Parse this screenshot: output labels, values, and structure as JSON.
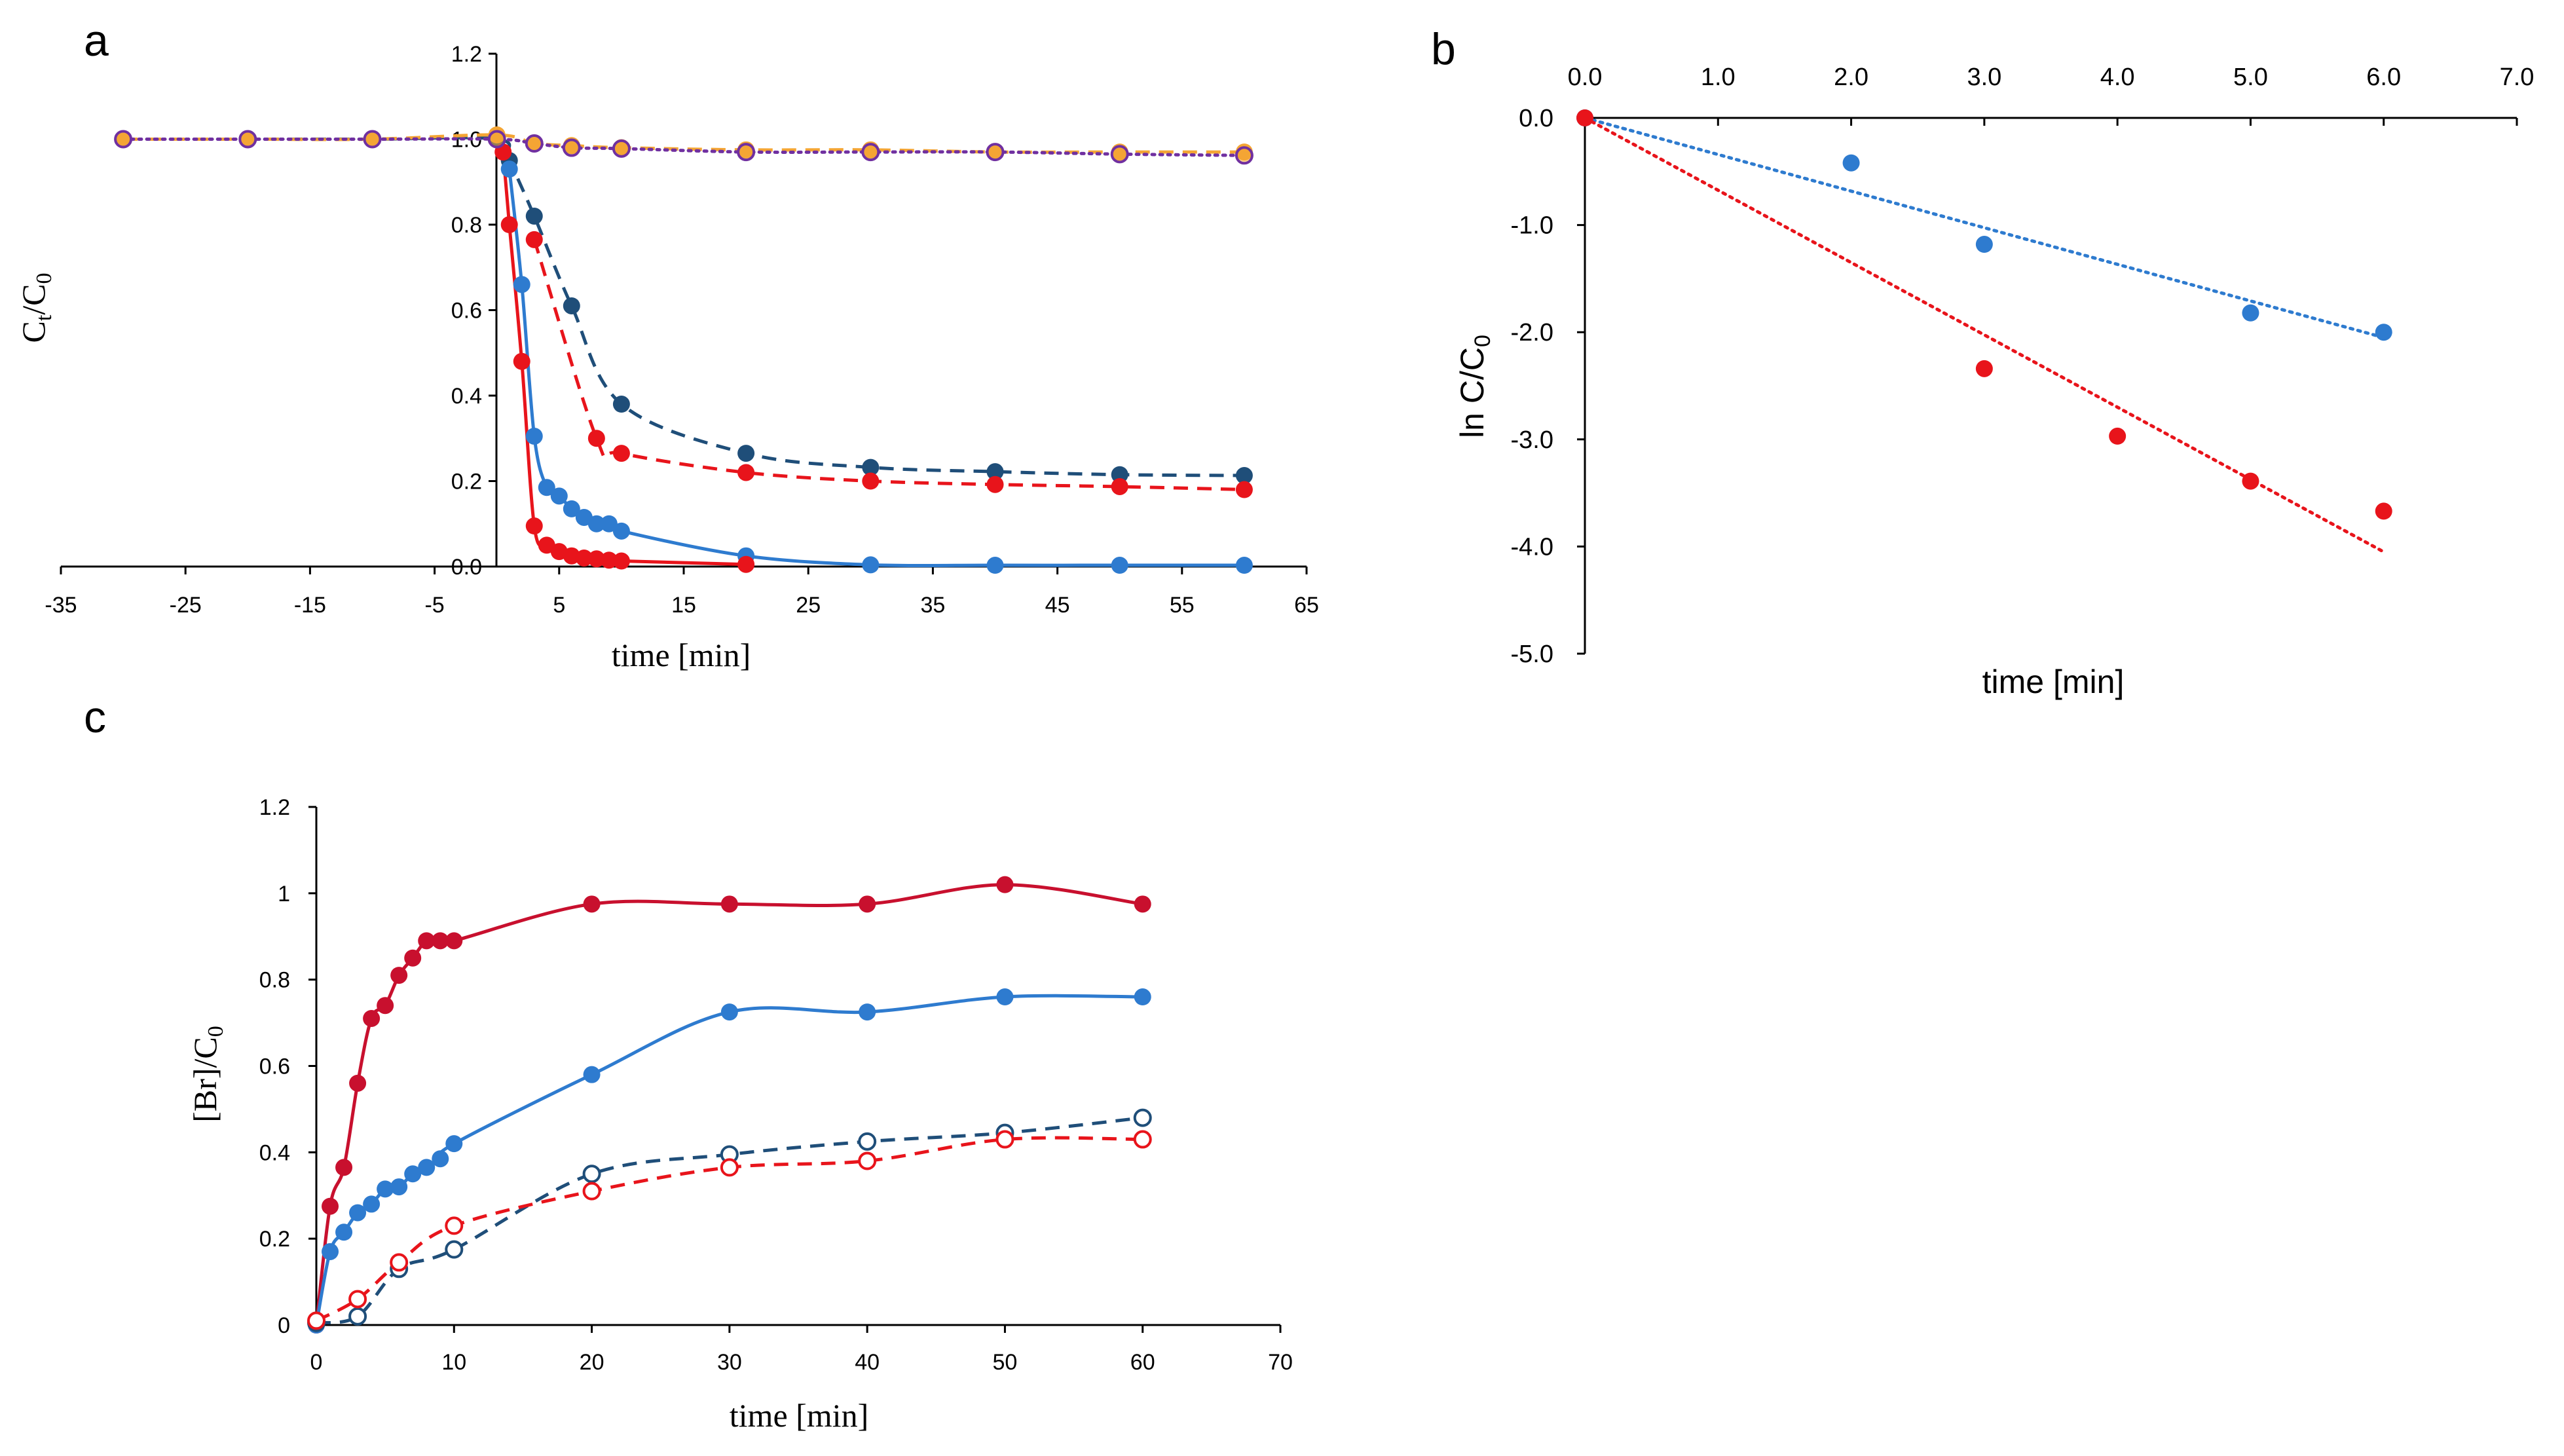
{
  "chart_data": [
    {
      "panel": "a",
      "type": "line",
      "xlabel": "time [min]",
      "ylabel_main": "C",
      "ylabel_sub1": "t",
      "ylabel_sep": "/C",
      "ylabel_sub2": "0",
      "xlim": [
        -35,
        65
      ],
      "ylim": [
        0,
        1.2
      ],
      "xticks": [
        "-35",
        "-25",
        "-15",
        "-5",
        "5",
        "15",
        "25",
        "35",
        "45",
        "55",
        "65"
      ],
      "yticks": [
        "0.0",
        "0.2",
        "0.4",
        "0.6",
        "0.8",
        "1.0",
        "1.2"
      ],
      "series": [
        {
          "name": "dark blue dashed",
          "color": "#1f4e79",
          "dash": "dashed",
          "marker": "filled",
          "x": [
            -30,
            -20,
            -10,
            0,
            1,
            3,
            6,
            10,
            20,
            30,
            40,
            50,
            60
          ],
          "y": [
            1.0,
            1.0,
            1.0,
            1.0,
            0.95,
            0.82,
            0.61,
            0.38,
            0.265,
            0.232,
            0.222,
            0.215,
            0.213
          ]
        },
        {
          "name": "red dashed",
          "color": "#e8141b",
          "dash": "dashed",
          "marker": "filled",
          "x": [
            3,
            8,
            10,
            20,
            30,
            40,
            50,
            60
          ],
          "y": [
            0.765,
            0.3,
            0.265,
            0.22,
            0.2,
            0.192,
            0.187,
            0.18
          ]
        },
        {
          "name": "blue solid",
          "color": "#2e7bcf",
          "dash": "solid",
          "marker": "filled",
          "x": [
            1,
            2,
            3,
            4,
            5,
            6,
            7,
            8,
            9,
            10,
            20,
            30,
            40,
            50,
            60
          ],
          "y": [
            0.93,
            0.66,
            0.305,
            0.185,
            0.165,
            0.135,
            0.115,
            0.1,
            0.1,
            0.083,
            0.025,
            0.004,
            0.003,
            0.003,
            0.003
          ]
        },
        {
          "name": "red solid",
          "color": "#e8141b",
          "dash": "solid",
          "marker": "filled",
          "x": [
            0.5,
            1,
            2,
            3,
            4,
            5,
            6,
            7,
            8,
            9,
            10,
            20
          ],
          "y": [
            0.97,
            0.8,
            0.48,
            0.095,
            0.05,
            0.035,
            0.025,
            0.02,
            0.018,
            0.015,
            0.013,
            0.005
          ]
        },
        {
          "name": "orange dashed",
          "color": "#f4a534",
          "dash": "dashed",
          "marker": "filled",
          "x": [
            -30,
            -20,
            -10,
            0,
            3,
            6,
            10,
            20,
            30,
            40,
            50,
            60
          ],
          "y": [
            1.0,
            1.0,
            1.0,
            1.01,
            0.99,
            0.985,
            0.98,
            0.975,
            0.975,
            0.97,
            0.97,
            0.97
          ]
        },
        {
          "name": "purple dotted",
          "color": "#7030a0",
          "dash": "dotted",
          "marker": "open",
          "x": [
            -30,
            -20,
            -10,
            0,
            3,
            6,
            10,
            20,
            30,
            40,
            50,
            60
          ],
          "y": [
            1.0,
            1.0,
            1.0,
            1.0,
            0.99,
            0.98,
            0.978,
            0.97,
            0.97,
            0.97,
            0.965,
            0.962
          ]
        }
      ]
    },
    {
      "panel": "b",
      "type": "scatter",
      "xlabel": "time [min]",
      "ylabel_main": "ln C/C",
      "ylabel_sub": "0",
      "xlim": [
        0,
        7
      ],
      "ylim": [
        -5,
        0
      ],
      "xticks": [
        "0.0",
        "1.0",
        "2.0",
        "3.0",
        "4.0",
        "5.0",
        "6.0",
        "7.0"
      ],
      "yticks": [
        "0.0",
        "-1.0",
        "-2.0",
        "-3.0",
        "-4.0",
        "-5.0"
      ],
      "series": [
        {
          "name": "blue",
          "color": "#2e7bcf",
          "x": [
            0,
            2,
            3,
            5,
            6
          ],
          "y": [
            0,
            -0.42,
            -1.18,
            -1.82,
            -2.0
          ],
          "trend": {
            "x": [
              0,
              6
            ],
            "y": [
              0,
              -2.05
            ]
          }
        },
        {
          "name": "red",
          "color": "#e8141b",
          "x": [
            0,
            3,
            4,
            5,
            6
          ],
          "y": [
            0,
            -2.34,
            -2.97,
            -3.39,
            -3.67
          ],
          "trend": {
            "x": [
              0,
              6
            ],
            "y": [
              0,
              -4.05
            ]
          }
        }
      ]
    },
    {
      "panel": "c",
      "type": "line",
      "xlabel": "time [min]",
      "ylabel": "[Br]/C",
      "ylabel_sub": "0",
      "xlim": [
        0,
        70
      ],
      "ylim": [
        0,
        1.2
      ],
      "xticks": [
        "0",
        "10",
        "20",
        "30",
        "40",
        "50",
        "60",
        "70"
      ],
      "yticks": [
        "0",
        "0.2",
        "0.4",
        "0.6",
        "0.8",
        "1",
        "1.2"
      ],
      "series": [
        {
          "name": "red solid",
          "color": "#c8102e",
          "dash": "solid",
          "marker": "filled",
          "x": [
            0,
            1,
            2,
            3,
            4,
            5,
            6,
            7,
            8,
            9,
            10,
            20,
            30,
            40,
            50,
            60
          ],
          "y": [
            0,
            0.275,
            0.365,
            0.56,
            0.71,
            0.74,
            0.81,
            0.85,
            0.89,
            0.89,
            0.89,
            0.975,
            0.975,
            0.975,
            1.02,
            0.975
          ]
        },
        {
          "name": "blue solid",
          "color": "#2e7bcf",
          "dash": "solid",
          "marker": "filled",
          "x": [
            0,
            1,
            2,
            3,
            4,
            5,
            6,
            7,
            8,
            9,
            10,
            20,
            30,
            40,
            50,
            60
          ],
          "y": [
            0,
            0.17,
            0.215,
            0.26,
            0.28,
            0.315,
            0.32,
            0.35,
            0.365,
            0.385,
            0.42,
            0.58,
            0.725,
            0.725,
            0.76,
            0.76
          ]
        },
        {
          "name": "dark blue dashed",
          "color": "#1f4e79",
          "dash": "dashed",
          "marker": "open",
          "x": [
            0,
            3,
            6,
            10,
            20,
            30,
            40,
            50,
            60
          ],
          "y": [
            0.005,
            0.02,
            0.13,
            0.175,
            0.35,
            0.395,
            0.425,
            0.445,
            0.48
          ]
        },
        {
          "name": "red dashed",
          "color": "#e8141b",
          "dash": "dashed",
          "marker": "open",
          "x": [
            0,
            3,
            6,
            10,
            20,
            30,
            40,
            50,
            60
          ],
          "y": [
            0.01,
            0.06,
            0.145,
            0.23,
            0.31,
            0.365,
            0.38,
            0.43,
            0.43
          ]
        }
      ]
    }
  ]
}
